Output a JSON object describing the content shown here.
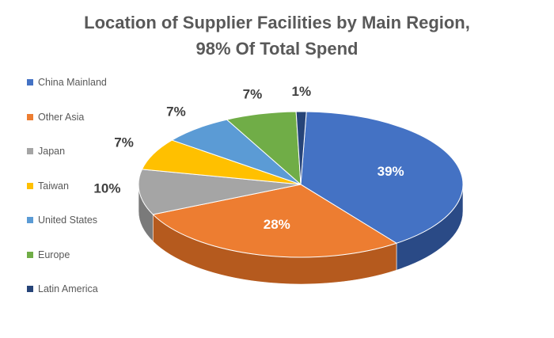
{
  "chart_data": {
    "type": "pie",
    "style": "3d",
    "title": [
      "Location of Supplier Facilities by Main Region,",
      "98% Of Total Spend"
    ],
    "legend_position": "left",
    "slices": [
      {
        "name": "China Mainland",
        "value": 39,
        "label": "39%",
        "color": "#4472C4",
        "side": "#2A4A86",
        "label_color": "#ffffff"
      },
      {
        "name": "Other Asia",
        "value": 28,
        "label": "28%",
        "color": "#ED7D31",
        "side": "#B55A1E",
        "label_color": "#ffffff"
      },
      {
        "name": "Japan",
        "value": 10,
        "label": "10%",
        "color": "#A5A5A5",
        "side": "#7A7A7A",
        "label_color": "#404040"
      },
      {
        "name": "Taiwan",
        "value": 7,
        "label": "7%",
        "color": "#FFC000",
        "side": "#C89600",
        "label_color": "#404040"
      },
      {
        "name": "United States",
        "value": 7,
        "label": "7%",
        "color": "#5B9BD5",
        "side": "#3B75A8",
        "label_color": "#404040"
      },
      {
        "name": "Europe",
        "value": 7,
        "label": "7%",
        "color": "#70AD47",
        "side": "#4F8230",
        "label_color": "#404040"
      },
      {
        "name": "Latin America",
        "value": 1,
        "label": "1%",
        "color": "#264478",
        "side": "#172B4D",
        "label_color": "#404040"
      }
    ]
  }
}
